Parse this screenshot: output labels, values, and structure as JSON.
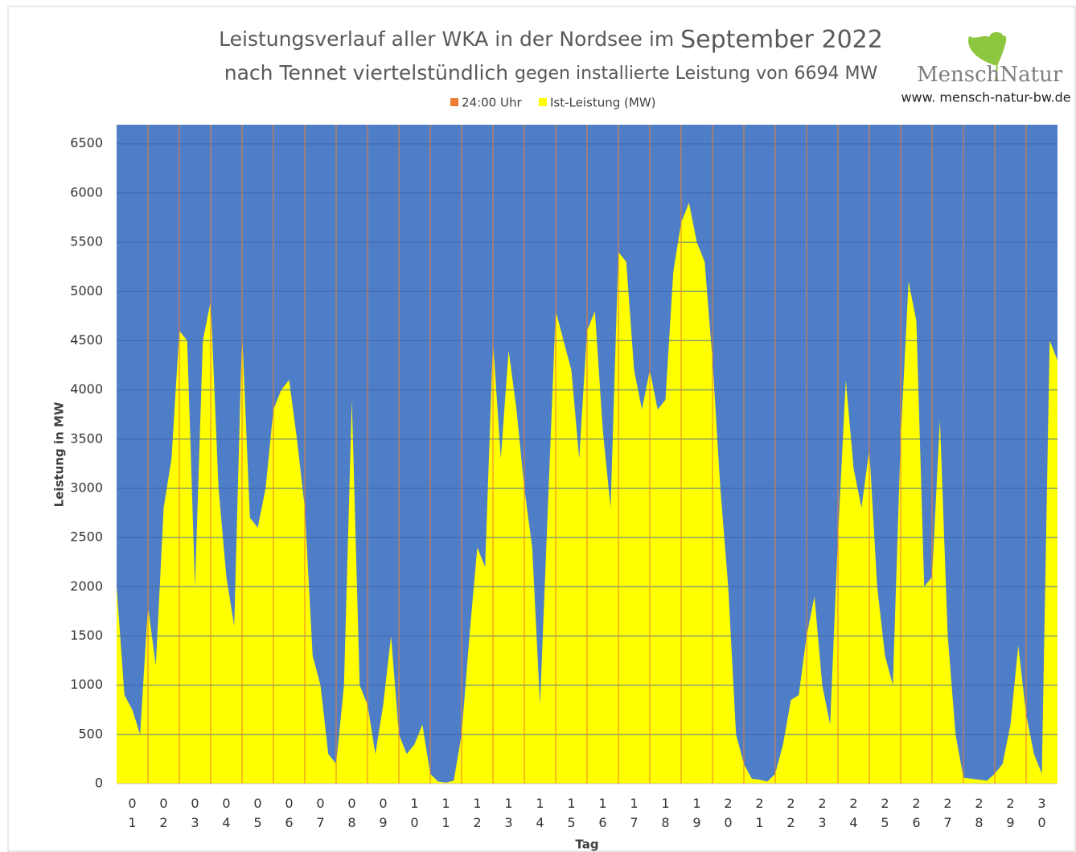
{
  "chart_data": {
    "type": "area",
    "title": [
      "Leistungsverlauf aller WKA in der Nordsee im",
      "September 2022"
    ],
    "subtitle": [
      "nach Tennet viertelstündlich",
      "gegen installierte Leistung von 6694 MW"
    ],
    "logo": {
      "word1": "Mensch",
      "word2": "Natur",
      "url": "www. mensch-natur-bw.de"
    },
    "y_label": "Leistung in MW",
    "x_label": "Tag",
    "categories": [
      "01",
      "02",
      "03",
      "04",
      "05",
      "06",
      "07",
      "08",
      "09",
      "10",
      "11",
      "12",
      "13",
      "14",
      "15",
      "16",
      "17",
      "18",
      "19",
      "20",
      "21",
      "22",
      "23",
      "24",
      "25",
      "26",
      "27",
      "28",
      "29",
      "30"
    ],
    "xlim": [
      0,
      30
    ],
    "ylim": [
      0,
      6694
    ],
    "yticks": [
      0,
      500,
      1000,
      1500,
      2000,
      2500,
      3000,
      3500,
      4000,
      4500,
      5000,
      5500,
      6000,
      6500
    ],
    "grid": true,
    "background": "#4f7ec8",
    "series": [
      {
        "name": "24:00 Uhr",
        "color": "#ed7d31",
        "type": "vline",
        "x": [
          1,
          2,
          3,
          4,
          5,
          6,
          7,
          8,
          9,
          10,
          11,
          12,
          13,
          14,
          15,
          16,
          17,
          18,
          19,
          20,
          21,
          22,
          23,
          24,
          25,
          26,
          27,
          28,
          29
        ]
      },
      {
        "name": "Ist-Leistung (MW)",
        "color": "#ffff00",
        "type": "area",
        "x": [
          0,
          0.25,
          0.5,
          0.75,
          1,
          1.25,
          1.5,
          1.75,
          2,
          2.25,
          2.5,
          2.75,
          3,
          3.25,
          3.5,
          3.75,
          4,
          4.25,
          4.5,
          4.75,
          5,
          5.25,
          5.5,
          5.75,
          6,
          6.25,
          6.5,
          6.75,
          7,
          7.25,
          7.5,
          7.75,
          8,
          8.25,
          8.5,
          8.75,
          9,
          9.25,
          9.5,
          9.75,
          10,
          10.25,
          10.5,
          10.75,
          11,
          11.25,
          11.5,
          11.75,
          12,
          12.25,
          12.5,
          12.75,
          13,
          13.25,
          13.5,
          13.75,
          14,
          14.25,
          14.5,
          14.75,
          15,
          15.25,
          15.5,
          15.75,
          16,
          16.25,
          16.5,
          16.75,
          17,
          17.25,
          17.5,
          17.75,
          18,
          18.25,
          18.5,
          18.75,
          19,
          19.25,
          19.5,
          19.75,
          20,
          20.25,
          20.5,
          20.75,
          21,
          21.25,
          21.5,
          21.75,
          22,
          22.25,
          22.5,
          22.75,
          23,
          23.25,
          23.5,
          23.75,
          24,
          24.25,
          24.5,
          24.75,
          25,
          25.25,
          25.5,
          25.75,
          26,
          26.25,
          26.5,
          26.75,
          27,
          27.25,
          27.5,
          27.75,
          28,
          28.25,
          28.5,
          28.75,
          29,
          29.25,
          29.5,
          29.75,
          30
        ],
        "values": [
          2000,
          900,
          750,
          500,
          1800,
          1200,
          2800,
          3300,
          4600,
          4500,
          2000,
          4500,
          4900,
          3000,
          2100,
          1600,
          4600,
          2700,
          2600,
          3000,
          3800,
          4000,
          4100,
          3500,
          2800,
          1300,
          1000,
          300,
          200,
          1000,
          3900,
          1000,
          800,
          300,
          800,
          1500,
          500,
          300,
          400,
          600,
          100,
          20,
          10,
          30,
          500,
          1500,
          2400,
          2200,
          4500,
          3300,
          4400,
          3800,
          3000,
          2400,
          800,
          2800,
          4800,
          4500,
          4200,
          3300,
          4600,
          4800,
          3600,
          2800,
          5400,
          5300,
          4200,
          3800,
          4200,
          3800,
          3900,
          5200,
          5700,
          5900,
          5500,
          5300,
          4300,
          3000,
          2000,
          500,
          200,
          50,
          40,
          20,
          100,
          400,
          850,
          900,
          1500,
          1900,
          1000,
          600,
          2500,
          4100,
          3200,
          2800,
          3400,
          2000,
          1300,
          1000,
          3500,
          5100,
          4700,
          2000,
          2100,
          3700,
          1500,
          500,
          60,
          50,
          40,
          30,
          100,
          200,
          600,
          1400,
          700,
          300,
          100,
          4500,
          4300
        ]
      }
    ]
  }
}
